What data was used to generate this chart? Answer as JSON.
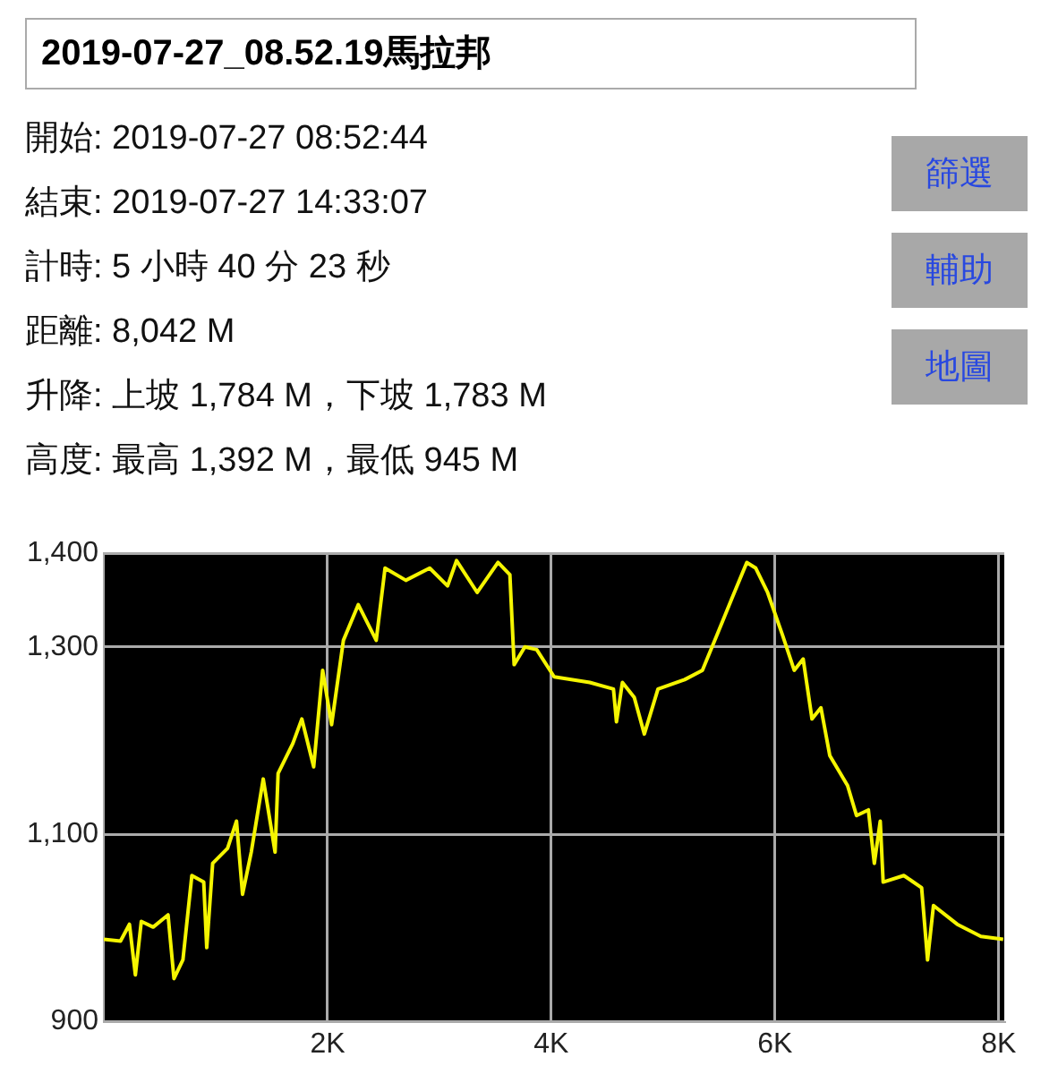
{
  "chart_data": {
    "type": "line",
    "title": "2019-07-27_08.52.19馬拉邦",
    "annotations": [
      "開始: 2019-07-27 08:52:44",
      "結束: 2019-07-27 14:33:07",
      "計時: 5 小時 40 分 23 秒",
      "距離: 8,042 M",
      "升降: 上坡 1,784 M，下坡 1,783 M",
      "高度: 最高 1,392 M，最低 945 M",
      "篩選",
      "輔助",
      "地圖"
    ],
    "x": [
      0,
      149,
      229,
      282,
      335,
      441,
      574,
      627,
      707,
      787,
      893,
      920,
      973,
      1106,
      1186,
      1240,
      1318,
      1425,
      1531,
      1558,
      1690,
      1770,
      1876,
      1956,
      2036,
      2142,
      2275,
      2435,
      2514,
      2700,
      2913,
      3073,
      3153,
      3338,
      3524,
      3630,
      3668,
      3764,
      3870,
      4026,
      4344,
      4556,
      4583,
      4636,
      4742,
      4832,
      4954,
      5192,
      5351,
      5483,
      5616,
      5748,
      5828,
      5934,
      6066,
      6172,
      6252,
      6331,
      6411,
      6490,
      6649,
      6729,
      6835,
      6888,
      6941,
      6967,
      7152,
      7311,
      7364,
      7417,
      7629,
      7841,
      8040
    ],
    "series": [
      {
        "color": "#f5f500",
        "values": [
          988,
          986,
          1004,
          950,
          1007,
          1001,
          1014,
          946,
          966,
          1056,
          1049,
          979,
          1069,
          1085,
          1114,
          1036,
          1081,
          1159,
          1081,
          1165,
          1197,
          1223,
          1172,
          1275,
          1217,
          1307,
          1345,
          1307,
          1384,
          1371,
          1384,
          1365,
          1392,
          1358,
          1390,
          1377,
          1281,
          1300,
          1297,
          1268,
          1262,
          1255,
          1220,
          1262,
          1246,
          1207,
          1255,
          1265,
          1275,
          1313,
          1352,
          1390,
          1384,
          1358,
          1313,
          1275,
          1287,
          1223,
          1235,
          1184,
          1152,
          1120,
          1126,
          1069,
          1114,
          1049,
          1056,
          1043,
          966,
          1024,
          1004,
          991,
          988
        ]
      }
    ],
    "xlim": [
      0,
      8050
    ],
    "xticks": [
      {
        "value": 2000,
        "label": "2K"
      },
      {
        "value": 4000,
        "label": "4K"
      },
      {
        "value": 6000,
        "label": "6K"
      },
      {
        "value": 8000,
        "label": "8K"
      }
    ],
    "ylim": [
      900,
      1400
    ],
    "yticks": [
      {
        "value": 900,
        "label": "900"
      },
      {
        "value": 1100,
        "label": "1,100"
      },
      {
        "value": 1300,
        "label": "1,300"
      },
      {
        "value": 1400,
        "label": "1,400"
      }
    ],
    "grid": true,
    "legend": false,
    "marker": "none",
    "line_style": "solid"
  }
}
